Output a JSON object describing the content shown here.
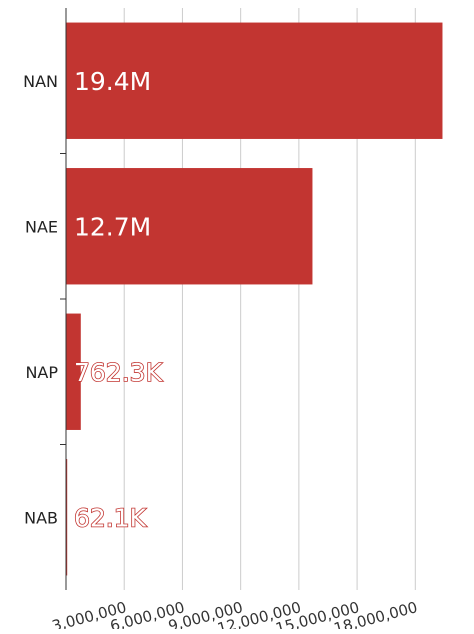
{
  "chart_data": {
    "type": "bar",
    "orientation": "horizontal",
    "categories": [
      "NAN",
      "NAE",
      "NAP",
      "NAB"
    ],
    "values": [
      19400000,
      12700000,
      762300,
      62100
    ],
    "data_labels": [
      "19.4M",
      "12.7M",
      "762.3K",
      "62.1K"
    ],
    "x_ticks": [
      3000000,
      6000000,
      9000000,
      12000000,
      15000000,
      18000000
    ],
    "x_tick_labels": [
      "3,000,000",
      "6,000,000",
      "9,000,000",
      "12,000,000",
      "15,000,000",
      "18,000,000"
    ],
    "xlim": [
      0,
      20200000
    ],
    "bar_color": "#c23531",
    "grid": "vertical",
    "legend": "none"
  }
}
